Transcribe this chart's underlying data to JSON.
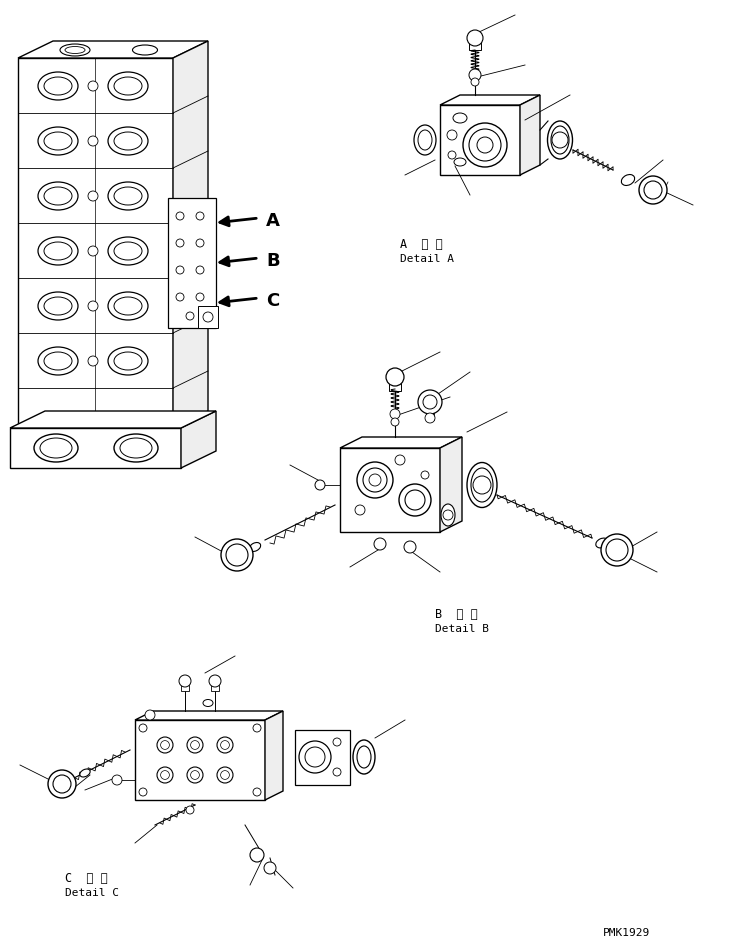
{
  "background_color": "#ffffff",
  "line_color": "#000000",
  "fig_width": 7.29,
  "fig_height": 9.5,
  "dpi": 100,
  "labels": {
    "A_kanji": "A  詳 細",
    "A_english": "Detail A",
    "B_kanji": "B  詳 細",
    "B_english": "Detail B",
    "C_kanji": "C  詳 細",
    "C_english": "Detail C",
    "watermark": "PMK1929"
  },
  "annotations": {
    "A_label": "A",
    "B_label": "B",
    "C_label": "C"
  }
}
